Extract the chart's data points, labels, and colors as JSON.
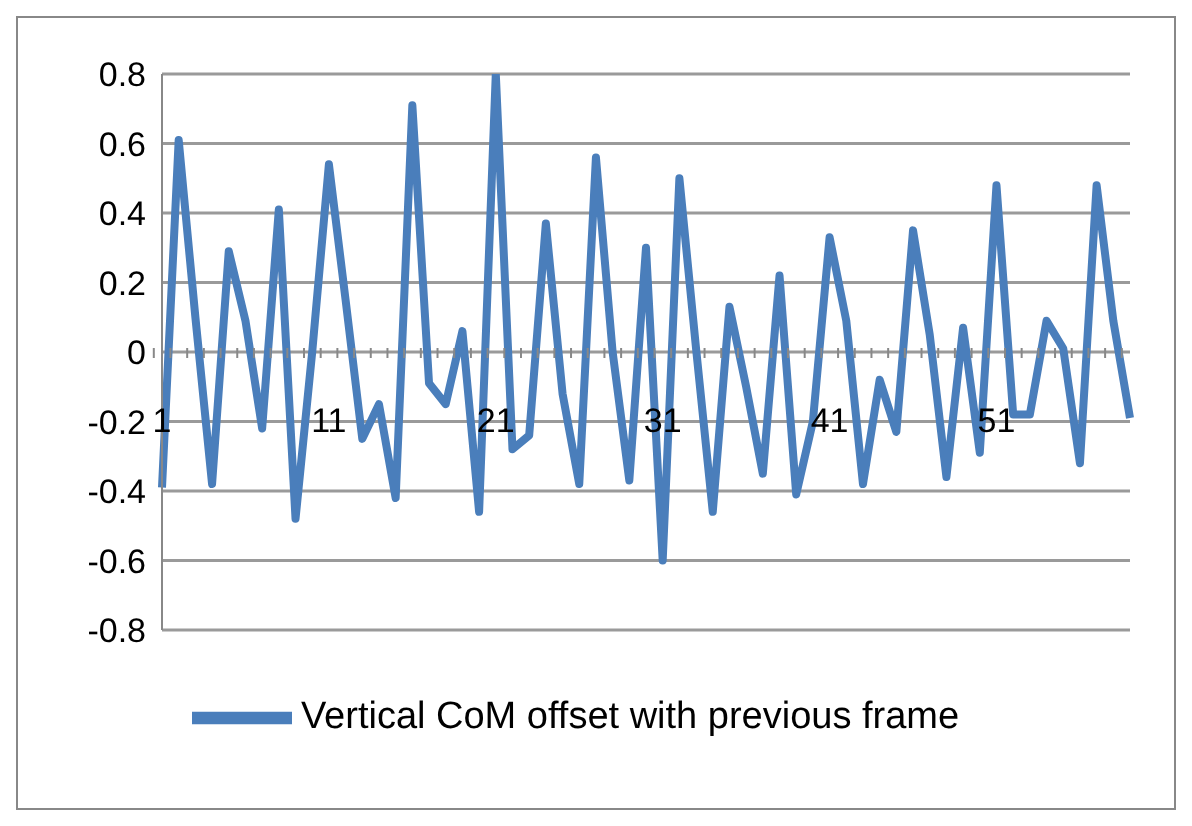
{
  "chart_data": {
    "type": "line",
    "categories": [
      "1",
      null,
      null,
      null,
      null,
      null,
      null,
      null,
      null,
      null,
      "11",
      null,
      null,
      null,
      null,
      null,
      null,
      null,
      null,
      null,
      "21",
      null,
      null,
      null,
      null,
      null,
      null,
      null,
      null,
      null,
      "31",
      null,
      null,
      null,
      null,
      null,
      null,
      null,
      null,
      null,
      "41",
      null,
      null,
      null,
      null,
      null,
      null,
      null,
      null,
      null,
      "51",
      null,
      null,
      null,
      null,
      null,
      null,
      null,
      null
    ],
    "series": [
      {
        "name": "Vertical CoM offset with previous frame",
        "color": "#4a7ebb",
        "values": [
          -0.39,
          0.61,
          0.1,
          -0.38,
          0.29,
          0.09,
          -0.22,
          0.41,
          -0.48,
          0.0,
          0.54,
          0.15,
          -0.25,
          -0.15,
          -0.42,
          0.71,
          -0.09,
          -0.15,
          0.06,
          -0.46,
          0.8,
          -0.28,
          -0.24,
          0.37,
          -0.12,
          -0.38,
          0.56,
          0.0,
          -0.37,
          0.3,
          -0.6,
          0.5,
          0.01,
          -0.46,
          0.13,
          -0.1,
          -0.35,
          0.22,
          -0.41,
          -0.2,
          0.33,
          0.09,
          -0.38,
          -0.08,
          -0.23,
          0.35,
          0.05,
          -0.36,
          0.07,
          -0.29,
          0.48,
          -0.18,
          -0.18,
          0.09,
          0.01,
          -0.32,
          0.48,
          0.09,
          -0.19
        ]
      }
    ],
    "ylim": [
      -0.8,
      0.8
    ],
    "yticks": [
      -0.8,
      -0.6,
      -0.4,
      -0.2,
      0,
      0.2,
      0.4,
      0.6,
      0.8
    ],
    "grid": "y",
    "legend": "bottom",
    "marker": "none",
    "line_style": "solid"
  }
}
